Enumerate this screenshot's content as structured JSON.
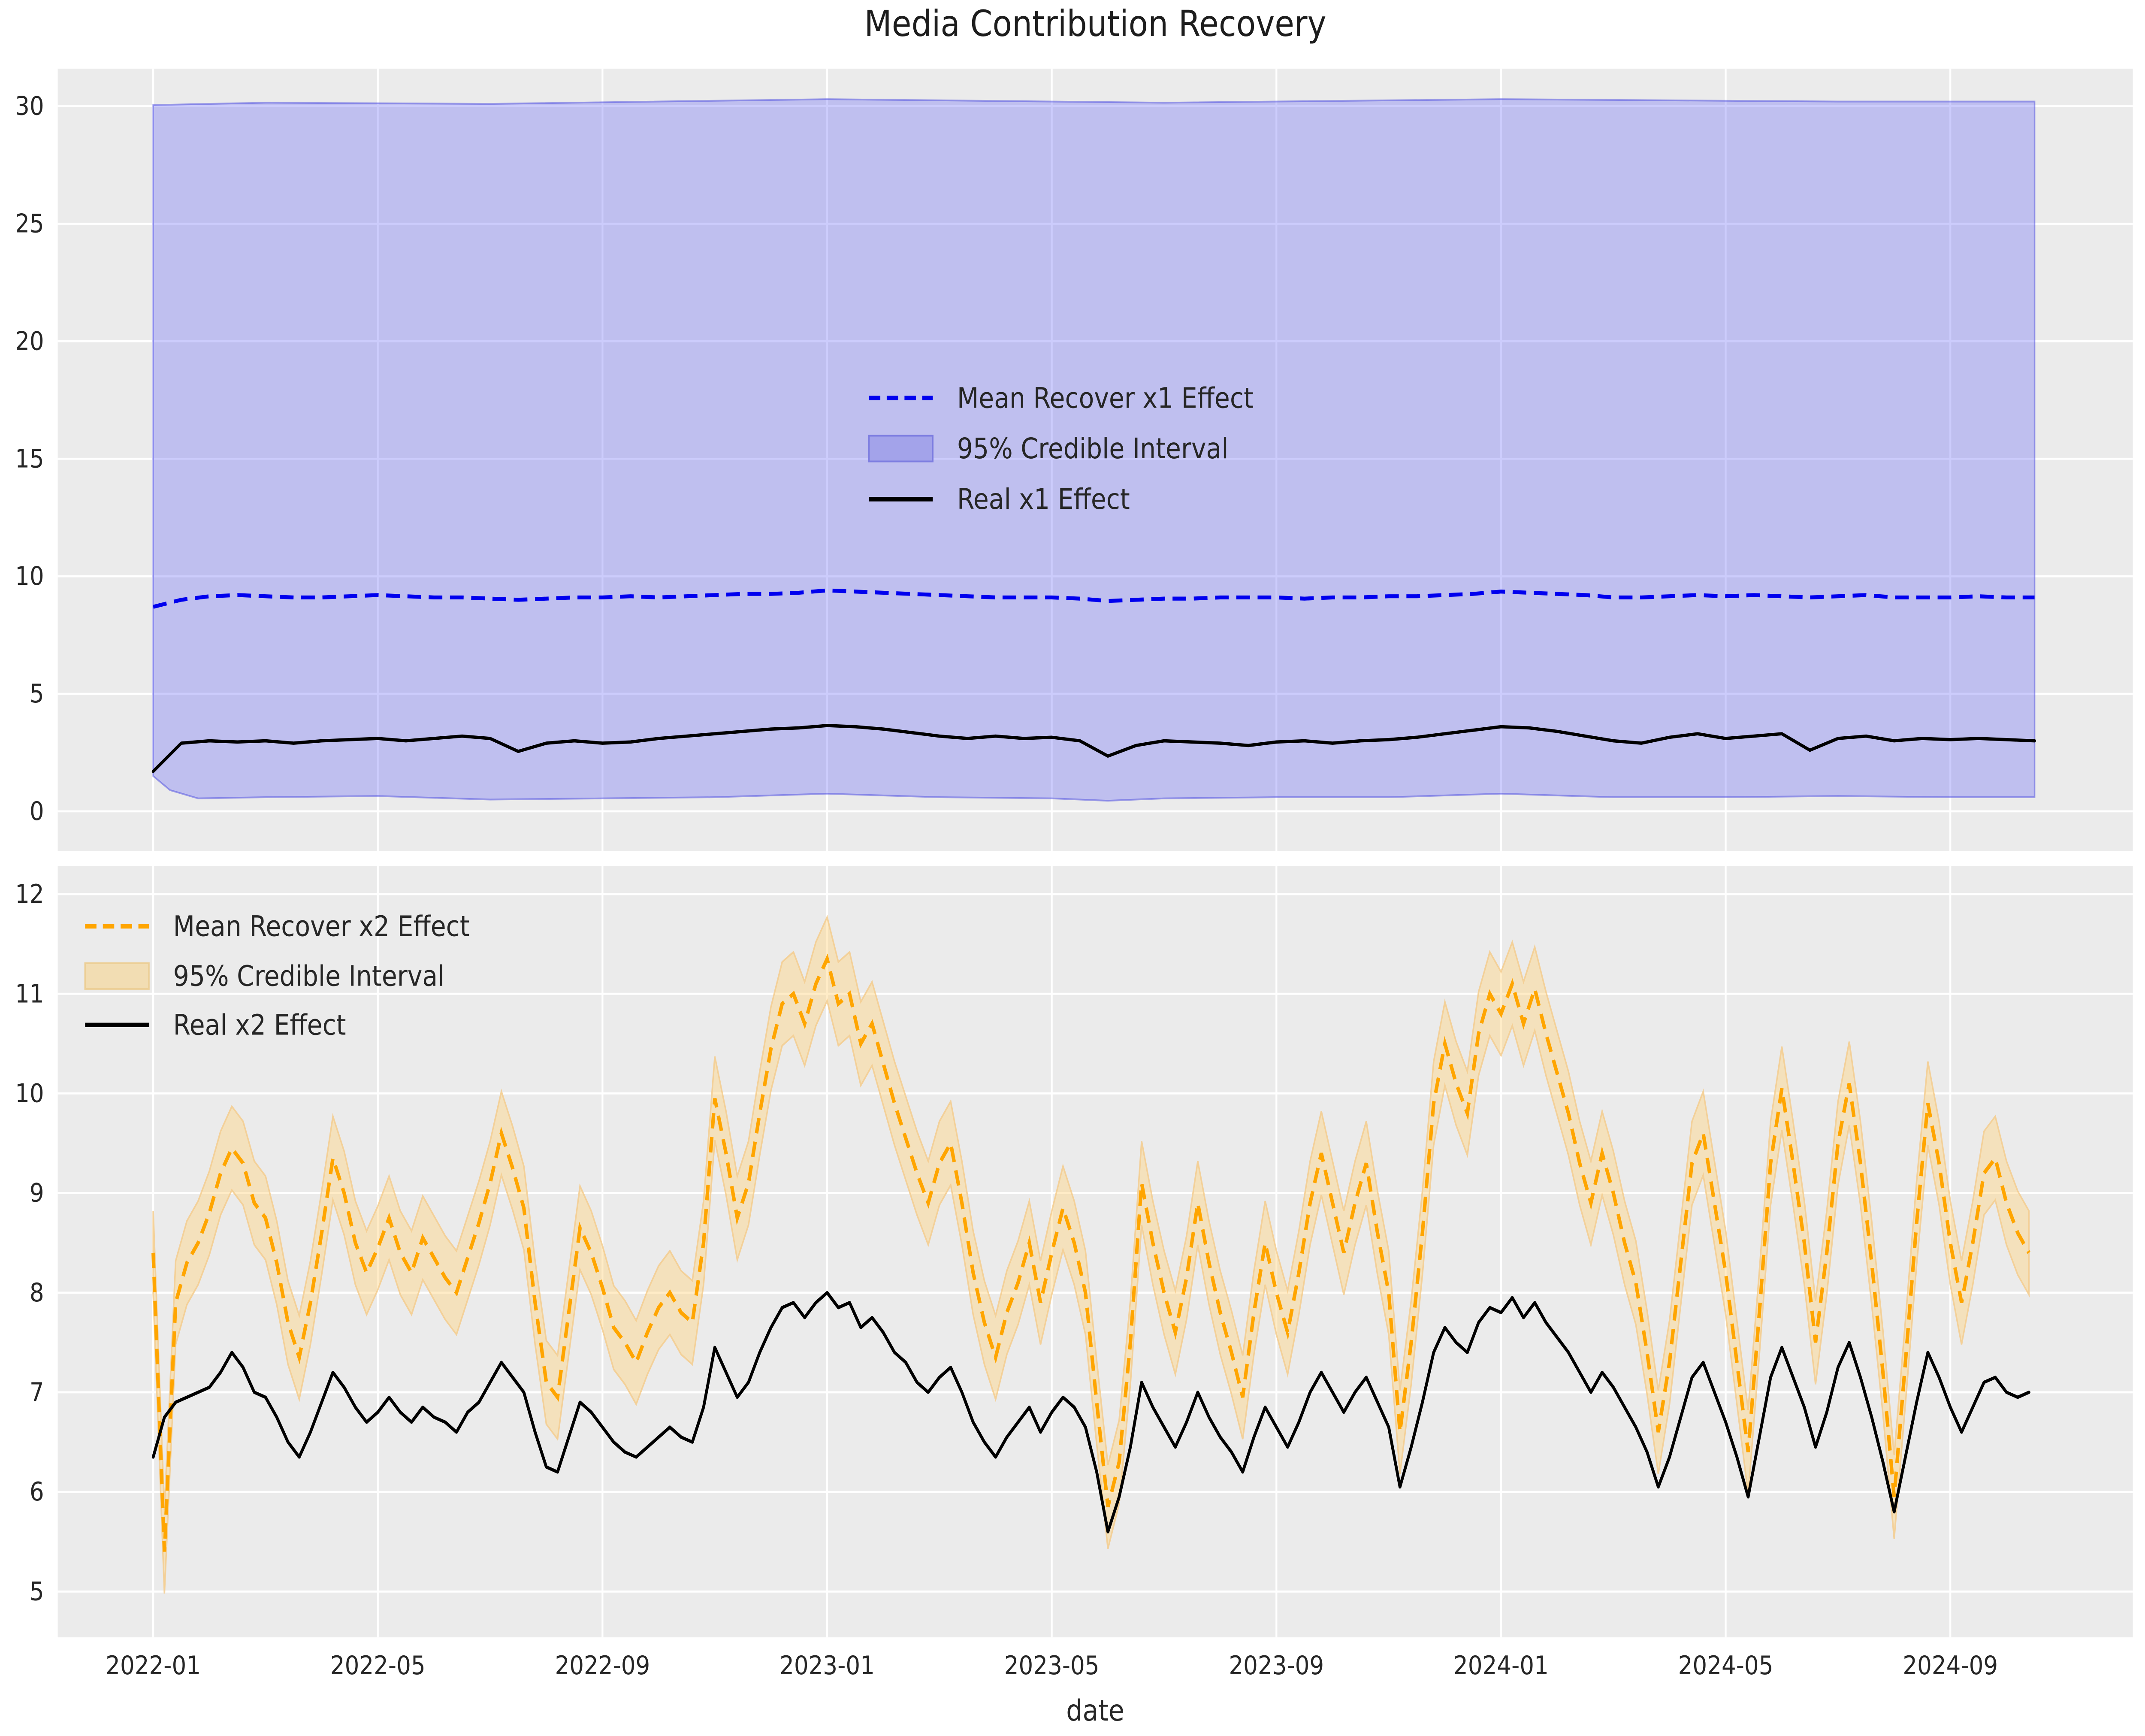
{
  "title": "Media Contribution Recovery",
  "xlabel": "date",
  "colors": {
    "figure_bg": "#ffffff",
    "axes_bg": "#ebebeb",
    "grid": "#ffffff",
    "text": "#262626",
    "x1_mean": "#0000ee",
    "x1_band_fill": "#6d6df6",
    "x1_band_edge": "#4c4ce0",
    "x2_mean": "#ffa500",
    "x2_band_fill": "#ffd582",
    "x2_band_edge": "#f3cd8f",
    "real": "#000000",
    "legend_patch_x1_fill": "#a3a3ea",
    "legend_patch_x1_edge": "#7d7de0",
    "legend_patch_x2_fill": "#f2ddb3",
    "legend_patch_x2_edge": "#eccf97"
  },
  "x_axis": {
    "label": "date",
    "tick_labels": [
      "2022-01",
      "2022-05",
      "2022-09",
      "2023-01",
      "2023-05",
      "2023-09",
      "2024-01",
      "2024-05",
      "2024-09"
    ],
    "tick_months": [
      0,
      4,
      8,
      12,
      16,
      20,
      24,
      28,
      32
    ],
    "xlim_months": [
      -1.7,
      35.25
    ],
    "x_unit": "months since 2022-01"
  },
  "chart_data": [
    {
      "type": "line",
      "name": "x1-recovery",
      "legend": {
        "mean": "Mean Recover x1 Effect",
        "ci": "95% Credible Interval",
        "real": "Real x1 Effect"
      },
      "ylim": [
        -1.7,
        31.6
      ],
      "ytick_values": [
        0,
        5,
        10,
        15,
        20,
        25,
        30
      ],
      "ytick_labels": [
        "0",
        "5",
        "10",
        "15",
        "20",
        "25",
        "30"
      ],
      "grid": true,
      "legend_position": "center",
      "x_start": 0,
      "x_step": 0.5,
      "band_alpha": 0.35,
      "band_edge_alpha": 0.5,
      "mean": [
        8.7,
        9.0,
        9.15,
        9.2,
        9.15,
        9.1,
        9.1,
        9.15,
        9.2,
        9.15,
        9.1,
        9.1,
        9.05,
        9.0,
        9.05,
        9.1,
        9.1,
        9.15,
        9.1,
        9.15,
        9.2,
        9.25,
        9.25,
        9.3,
        9.4,
        9.35,
        9.3,
        9.25,
        9.2,
        9.15,
        9.1,
        9.1,
        9.1,
        9.05,
        8.95,
        9.0,
        9.05,
        9.05,
        9.1,
        9.1,
        9.1,
        9.05,
        9.1,
        9.1,
        9.15,
        9.15,
        9.2,
        9.25,
        9.35,
        9.3,
        9.25,
        9.2,
        9.1,
        9.1,
        9.15,
        9.2,
        9.15,
        9.2,
        9.15,
        9.1,
        9.15,
        9.2,
        9.1,
        9.1,
        9.1,
        9.15,
        9.1,
        9.1
      ],
      "real": [
        1.7,
        2.9,
        3.0,
        2.95,
        3.0,
        2.9,
        3.0,
        3.05,
        3.1,
        3.0,
        3.1,
        3.2,
        3.1,
        2.55,
        2.9,
        3.0,
        2.9,
        2.95,
        3.1,
        3.2,
        3.3,
        3.4,
        3.5,
        3.55,
        3.65,
        3.6,
        3.5,
        3.35,
        3.2,
        3.1,
        3.2,
        3.1,
        3.15,
        3.0,
        2.35,
        2.8,
        3.0,
        2.95,
        2.9,
        2.8,
        2.95,
        3.0,
        2.9,
        3.0,
        3.05,
        3.15,
        3.3,
        3.45,
        3.6,
        3.55,
        3.4,
        3.2,
        3.0,
        2.9,
        3.15,
        3.3,
        3.1,
        3.2,
        3.3,
        2.6,
        3.1,
        3.2,
        3.0,
        3.1,
        3.05,
        3.1,
        3.05,
        3.0
      ],
      "ci_upper": {
        "m": [
          0,
          2,
          6,
          12,
          18,
          24,
          30,
          33.5
        ],
        "v": [
          30.05,
          30.15,
          30.1,
          30.3,
          30.15,
          30.3,
          30.2,
          30.2
        ]
      },
      "ci_lower": {
        "m": [
          0,
          0.3,
          0.8,
          2,
          4,
          6,
          8,
          10,
          12,
          14,
          16,
          17,
          18,
          20,
          22,
          24,
          26,
          28,
          30,
          32,
          33.5
        ],
        "v": [
          1.5,
          0.9,
          0.55,
          0.6,
          0.65,
          0.5,
          0.55,
          0.6,
          0.75,
          0.6,
          0.55,
          0.45,
          0.55,
          0.6,
          0.6,
          0.75,
          0.6,
          0.6,
          0.65,
          0.6,
          0.6
        ]
      }
    },
    {
      "type": "line",
      "name": "x2-recovery",
      "legend": {
        "mean": "Mean Recover x2 Effect",
        "ci": "95% Credible Interval",
        "real": "Real x2 Effect"
      },
      "ylim": [
        4.54,
        12.28
      ],
      "ytick_values": [
        5,
        6,
        7,
        8,
        9,
        10,
        11,
        12
      ],
      "ytick_labels": [
        "5",
        "6",
        "7",
        "8",
        "9",
        "10",
        "11",
        "12"
      ],
      "grid": true,
      "legend_position": "upper left",
      "x_start": 0,
      "x_step": 0.2,
      "ci_halfwidth": 0.42,
      "band_alpha": 0.45,
      "band_edge_alpha": 0.85,
      "mean": [
        8.4,
        5.4,
        7.9,
        8.3,
        8.5,
        8.8,
        9.2,
        9.45,
        9.3,
        8.9,
        8.75,
        8.3,
        7.7,
        7.35,
        7.9,
        8.6,
        9.35,
        9.0,
        8.5,
        8.2,
        8.45,
        8.75,
        8.4,
        8.2,
        8.55,
        8.35,
        8.15,
        8.0,
        8.35,
        8.7,
        9.1,
        9.6,
        9.25,
        8.85,
        7.9,
        7.1,
        6.95,
        7.8,
        8.65,
        8.4,
        8.05,
        7.65,
        7.5,
        7.3,
        7.6,
        7.85,
        8.0,
        7.8,
        7.7,
        8.5,
        9.95,
        9.4,
        8.75,
        9.1,
        9.8,
        10.45,
        10.9,
        11.0,
        10.7,
        11.1,
        11.35,
        10.9,
        11.0,
        10.5,
        10.7,
        10.3,
        9.9,
        9.55,
        9.2,
        8.9,
        9.3,
        9.5,
        8.9,
        8.2,
        7.7,
        7.35,
        7.8,
        8.1,
        8.5,
        7.9,
        8.4,
        8.85,
        8.5,
        8.0,
        6.9,
        5.85,
        6.3,
        7.5,
        9.1,
        8.5,
        8.0,
        7.6,
        8.15,
        8.9,
        8.3,
        7.8,
        7.4,
        6.95,
        7.8,
        8.5,
        8.0,
        7.6,
        8.2,
        8.9,
        9.4,
        8.9,
        8.4,
        8.9,
        9.3,
        8.6,
        8.0,
        6.6,
        7.5,
        8.6,
        9.9,
        10.5,
        10.1,
        9.8,
        10.6,
        11.0,
        10.8,
        11.1,
        10.7,
        11.05,
        10.6,
        10.2,
        9.8,
        9.3,
        8.9,
        9.4,
        9.0,
        8.5,
        8.1,
        7.4,
        6.6,
        7.3,
        8.3,
        9.3,
        9.6,
        8.9,
        8.2,
        7.3,
        6.4,
        7.8,
        9.3,
        10.05,
        9.3,
        8.5,
        7.5,
        8.4,
        9.5,
        10.1,
        9.3,
        8.3,
        7.2,
        5.95,
        7.3,
        8.7,
        9.9,
        9.3,
        8.5,
        7.9,
        8.5,
        9.2,
        9.35,
        8.9,
        8.6,
        8.4
      ],
      "real": [
        6.35,
        6.75,
        6.9,
        6.95,
        7.0,
        7.05,
        7.2,
        7.4,
        7.25,
        7.0,
        6.95,
        6.75,
        6.5,
        6.35,
        6.6,
        6.9,
        7.2,
        7.05,
        6.85,
        6.7,
        6.8,
        6.95,
        6.8,
        6.7,
        6.85,
        6.75,
        6.7,
        6.6,
        6.8,
        6.9,
        7.1,
        7.3,
        7.15,
        7.0,
        6.6,
        6.25,
        6.2,
        6.55,
        6.9,
        6.8,
        6.65,
        6.5,
        6.4,
        6.35,
        6.45,
        6.55,
        6.65,
        6.55,
        6.5,
        6.85,
        7.45,
        7.2,
        6.95,
        7.1,
        7.4,
        7.65,
        7.85,
        7.9,
        7.75,
        7.9,
        8.0,
        7.85,
        7.9,
        7.65,
        7.75,
        7.6,
        7.4,
        7.3,
        7.1,
        7.0,
        7.15,
        7.25,
        7.0,
        6.7,
        6.5,
        6.35,
        6.55,
        6.7,
        6.85,
        6.6,
        6.8,
        6.95,
        6.85,
        6.65,
        6.2,
        5.6,
        5.95,
        6.45,
        7.1,
        6.85,
        6.65,
        6.45,
        6.7,
        7.0,
        6.75,
        6.55,
        6.4,
        6.2,
        6.55,
        6.85,
        6.65,
        6.45,
        6.7,
        7.0,
        7.2,
        7.0,
        6.8,
        7.0,
        7.15,
        6.9,
        6.65,
        6.05,
        6.45,
        6.9,
        7.4,
        7.65,
        7.5,
        7.4,
        7.7,
        7.85,
        7.8,
        7.95,
        7.75,
        7.9,
        7.7,
        7.55,
        7.4,
        7.2,
        7.0,
        7.2,
        7.05,
        6.85,
        6.65,
        6.4,
        6.05,
        6.35,
        6.75,
        7.15,
        7.3,
        7.0,
        6.7,
        6.35,
        5.95,
        6.55,
        7.15,
        7.45,
        7.15,
        6.85,
        6.45,
        6.8,
        7.25,
        7.5,
        7.15,
        6.75,
        6.3,
        5.8,
        6.35,
        6.9,
        7.4,
        7.15,
        6.85,
        6.6,
        6.85,
        7.1,
        7.15,
        7.0,
        6.95,
        7.0
      ]
    }
  ]
}
